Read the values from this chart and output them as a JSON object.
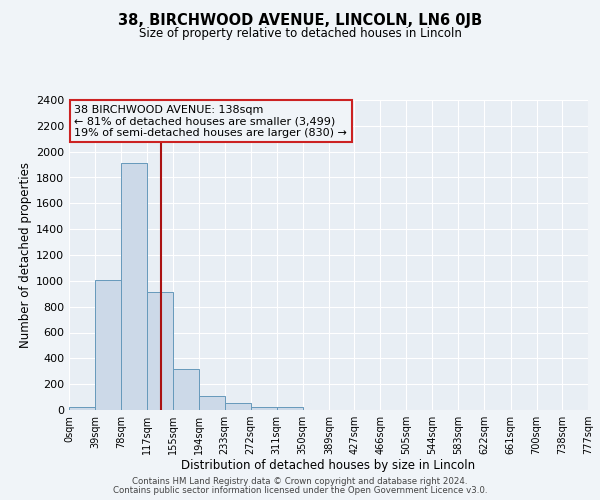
{
  "title": "38, BIRCHWOOD AVENUE, LINCOLN, LN6 0JB",
  "subtitle": "Size of property relative to detached houses in Lincoln",
  "xlabel": "Distribution of detached houses by size in Lincoln",
  "ylabel": "Number of detached properties",
  "bar_edges": [
    0,
    39,
    78,
    117,
    155,
    194,
    233,
    272,
    311,
    350,
    389,
    427,
    466,
    505,
    544,
    583,
    622,
    661,
    700,
    738,
    777
  ],
  "bar_heights": [
    20,
    1010,
    1910,
    910,
    320,
    110,
    55,
    25,
    20,
    0,
    0,
    0,
    0,
    0,
    0,
    0,
    0,
    0,
    0,
    0
  ],
  "bar_color": "#ccd9e8",
  "bar_edge_color": "#6699bb",
  "red_line_x": 138,
  "ylim": [
    0,
    2400
  ],
  "yticks": [
    0,
    200,
    400,
    600,
    800,
    1000,
    1200,
    1400,
    1600,
    1800,
    2000,
    2200,
    2400
  ],
  "xtick_labels": [
    "0sqm",
    "39sqm",
    "78sqm",
    "117sqm",
    "155sqm",
    "194sqm",
    "233sqm",
    "272sqm",
    "311sqm",
    "350sqm",
    "389sqm",
    "427sqm",
    "466sqm",
    "505sqm",
    "544sqm",
    "583sqm",
    "622sqm",
    "661sqm",
    "700sqm",
    "738sqm",
    "777sqm"
  ],
  "annotation_title": "38 BIRCHWOOD AVENUE: 138sqm",
  "annotation_line1": "← 81% of detached houses are smaller (3,499)",
  "annotation_line2": "19% of semi-detached houses are larger (830) →",
  "footer1": "Contains HM Land Registry data © Crown copyright and database right 2024.",
  "footer2": "Contains public sector information licensed under the Open Government Licence v3.0.",
  "background_color": "#f0f4f8",
  "plot_background_color": "#e8eef4",
  "grid_color": "#ffffff"
}
